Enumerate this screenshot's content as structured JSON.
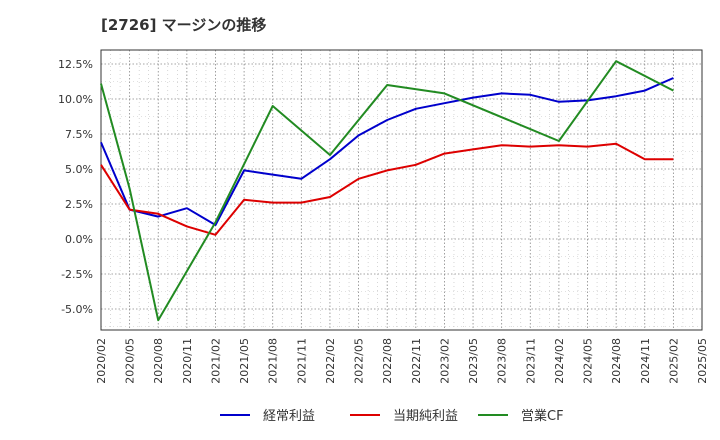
{
  "chart_data": {
    "type": "line",
    "title": "[2726]  マージンの推移",
    "xlabel": "",
    "ylabel": "",
    "x": [
      "2020/02",
      "2020/05",
      "2020/08",
      "2020/11",
      "2021/02",
      "2021/05",
      "2021/08",
      "2021/11",
      "2022/02",
      "2022/05",
      "2022/08",
      "2022/11",
      "2023/02",
      "2023/05",
      "2023/08",
      "2023/11",
      "2024/02",
      "2024/05",
      "2024/08",
      "2024/11",
      "2025/02"
    ],
    "x_ticks": [
      "2020/02",
      "2020/05",
      "2020/08",
      "2020/11",
      "2021/02",
      "2021/05",
      "2021/08",
      "2021/11",
      "2022/02",
      "2022/05",
      "2022/08",
      "2022/11",
      "2023/02",
      "2023/05",
      "2023/08",
      "2023/11",
      "2024/02",
      "2024/05",
      "2024/08",
      "2024/11",
      "2025/02",
      "2025/05"
    ],
    "y_ticks": [
      "12.5%",
      "10.0%",
      "7.5%",
      "5.0%",
      "2.5%",
      "0.0%",
      "-2.5%",
      "-5.0%"
    ],
    "y_tick_values": [
      12.5,
      10.0,
      7.5,
      5.0,
      2.5,
      0.0,
      -2.5,
      -5.0
    ],
    "ylim": [
      -6.5,
      13.5
    ],
    "grid": true,
    "legend_position": "bottom",
    "series": [
      {
        "name": "経常利益",
        "color": "#0000cc",
        "values": [
          6.9,
          2.1,
          1.6,
          2.2,
          1.0,
          4.9,
          4.6,
          4.3,
          5.7,
          7.4,
          8.5,
          9.3,
          9.7,
          10.1,
          10.4,
          10.3,
          9.8,
          9.9,
          10.2,
          10.6,
          11.5
        ]
      },
      {
        "name": "当期純利益",
        "color": "#dd0000",
        "values": [
          5.3,
          2.1,
          1.8,
          0.9,
          0.3,
          2.8,
          2.6,
          2.6,
          3.0,
          4.3,
          4.9,
          5.3,
          6.1,
          6.4,
          6.7,
          6.6,
          6.7,
          6.6,
          6.8,
          5.7,
          5.7
        ]
      },
      {
        "name": "営業CF",
        "color": "#228b22",
        "values": [
          11.1,
          3.6,
          -5.8,
          null,
          1.2,
          null,
          9.5,
          null,
          6.0,
          null,
          11.0,
          null,
          10.4,
          null,
          null,
          null,
          7.0,
          null,
          12.7,
          null,
          10.6
        ]
      }
    ]
  }
}
